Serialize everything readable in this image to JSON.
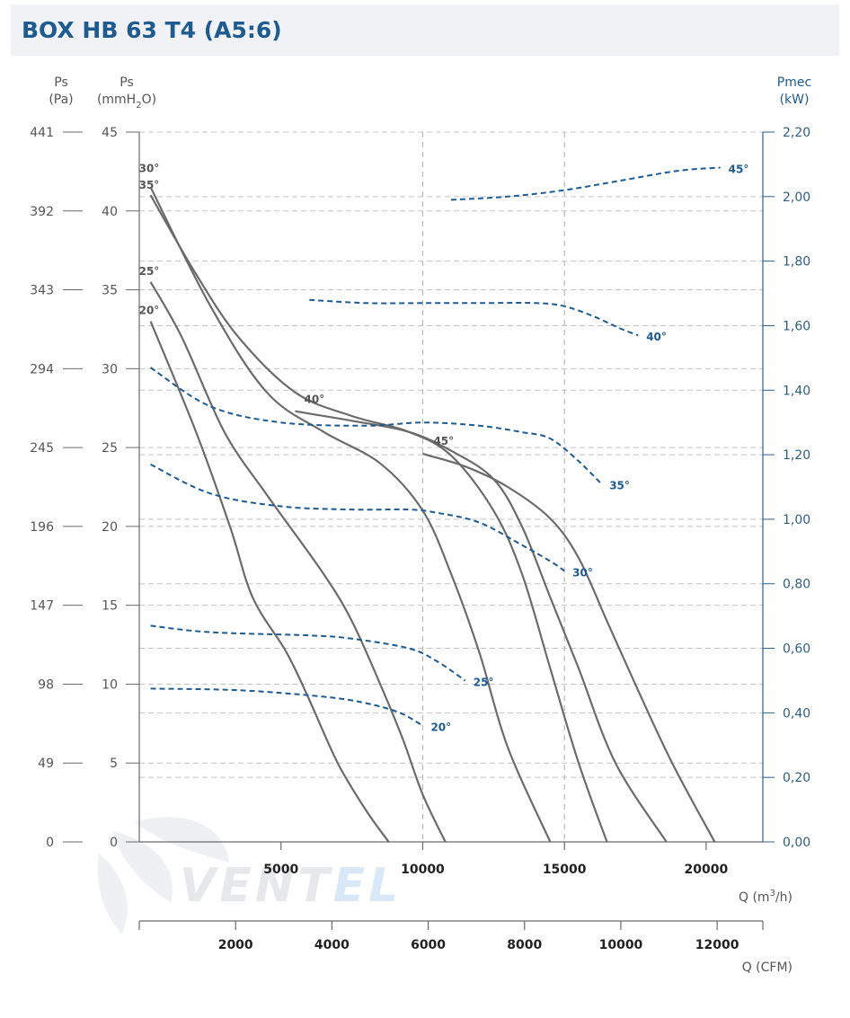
{
  "title": "BOX HB 63 T4 (A5:6)",
  "watermark": "VENTEL",
  "chart_data": {
    "type": "line",
    "title": "BOX HB 63 T4 (A5:6)",
    "axes": {
      "left_pa": {
        "label_top": "Ps",
        "label_unit": "(Pa)",
        "ticks": [
          "0",
          "49",
          "98",
          "147",
          "196",
          "245",
          "294",
          "343",
          "392",
          "441"
        ]
      },
      "left_mmh2o": {
        "label_top": "Ps",
        "label_unit_pre": "(mmH",
        "label_unit_sub": "2",
        "label_unit_post": "O)",
        "ticks": [
          "0",
          "5",
          "10",
          "15",
          "20",
          "25",
          "30",
          "35",
          "40",
          "45"
        ],
        "range": [
          0,
          45
        ]
      },
      "right_kw": {
        "label_top": "Pmec",
        "label_unit": "(kW)",
        "ticks": [
          "0,00",
          "0,20",
          "0,40",
          "0,60",
          "0,80",
          "1,00",
          "1,20",
          "1,40",
          "1,60",
          "1,80",
          "2,00",
          "2,20"
        ],
        "range": [
          0,
          2.2
        ]
      },
      "x_m3h": {
        "label_pre": "Q (m",
        "label_sup": "3",
        "label_post": "/h)",
        "ticks": [
          "5000",
          "10000",
          "15000",
          "20000"
        ],
        "range": [
          0,
          22000
        ]
      },
      "x_cfm": {
        "label": "Q (CFM)",
        "ticks": [
          "2000",
          "4000",
          "6000",
          "8000",
          "10000",
          "12000"
        ]
      }
    },
    "pressure_curves": [
      {
        "angle": "20°",
        "label_side": "left",
        "points": [
          [
            400,
            33
          ],
          [
            2000,
            26
          ],
          [
            3200,
            20
          ],
          [
            4000,
            15.5
          ],
          [
            5200,
            12
          ],
          [
            6000,
            9
          ],
          [
            7000,
            5
          ],
          [
            8000,
            2
          ],
          [
            8800,
            0
          ]
        ]
      },
      {
        "angle": "25°",
        "label_side": "left",
        "points": [
          [
            400,
            35.5
          ],
          [
            1500,
            32
          ],
          [
            3000,
            26
          ],
          [
            4500,
            22
          ],
          [
            6500,
            17
          ],
          [
            7500,
            14
          ],
          [
            8500,
            10
          ],
          [
            9300,
            6.5
          ],
          [
            10000,
            3
          ],
          [
            10800,
            0
          ]
        ]
      },
      {
        "angle": "30°",
        "label_side": "left",
        "points": [
          [
            400,
            41.5
          ],
          [
            2500,
            34
          ],
          [
            4500,
            28.5
          ],
          [
            6500,
            26
          ],
          [
            8500,
            24
          ],
          [
            10000,
            21
          ],
          [
            11000,
            17
          ],
          [
            12000,
            12
          ],
          [
            13000,
            6
          ],
          [
            14500,
            0
          ]
        ]
      },
      {
        "angle": "35°",
        "label_side": "left",
        "points": [
          [
            400,
            41
          ],
          [
            2000,
            36
          ],
          [
            3500,
            32
          ],
          [
            5500,
            28.5
          ],
          [
            7500,
            27
          ],
          [
            9500,
            26
          ],
          [
            11000,
            24.5
          ],
          [
            12500,
            21
          ],
          [
            13500,
            17
          ],
          [
            14500,
            11
          ],
          [
            15500,
            5
          ],
          [
            16500,
            0
          ]
        ]
      },
      {
        "angle": "40°",
        "label_side": "curve",
        "points": [
          [
            5500,
            27.3
          ],
          [
            7500,
            26.7
          ],
          [
            9500,
            26
          ],
          [
            11000,
            24.8
          ],
          [
            12500,
            23
          ],
          [
            13500,
            20
          ],
          [
            14500,
            15.5
          ],
          [
            15500,
            11
          ],
          [
            16800,
            5
          ],
          [
            18600,
            0
          ]
        ]
      },
      {
        "angle": "45°",
        "label_side": "curve",
        "points": [
          [
            10000,
            24.6
          ],
          [
            11500,
            23.8
          ],
          [
            13000,
            22.5
          ],
          [
            14500,
            20.5
          ],
          [
            15500,
            18
          ],
          [
            16500,
            14
          ],
          [
            17500,
            10
          ],
          [
            18800,
            5
          ],
          [
            20300,
            0
          ]
        ]
      }
    ],
    "power_curves": [
      {
        "angle": "20°",
        "points": [
          [
            400,
            0.475
          ],
          [
            3500,
            0.47
          ],
          [
            6500,
            0.45
          ],
          [
            8000,
            0.43
          ],
          [
            9200,
            0.4
          ],
          [
            10000,
            0.36
          ]
        ]
      },
      {
        "angle": "25°",
        "points": [
          [
            400,
            0.67
          ],
          [
            2500,
            0.65
          ],
          [
            6000,
            0.64
          ],
          [
            7500,
            0.63
          ],
          [
            9500,
            0.6
          ],
          [
            10500,
            0.56
          ],
          [
            11500,
            0.5
          ]
        ]
      },
      {
        "angle": "30°",
        "points": [
          [
            400,
            1.17
          ],
          [
            2500,
            1.08
          ],
          [
            5000,
            1.04
          ],
          [
            7500,
            1.03
          ],
          [
            9500,
            1.03
          ],
          [
            10500,
            1.02
          ],
          [
            12000,
            0.99
          ],
          [
            13500,
            0.92
          ],
          [
            14500,
            0.87
          ],
          [
            15000,
            0.84
          ]
        ]
      },
      {
        "angle": "35°",
        "points": [
          [
            400,
            1.47
          ],
          [
            2500,
            1.35
          ],
          [
            5000,
            1.3
          ],
          [
            8000,
            1.29
          ],
          [
            10000,
            1.3
          ],
          [
            12000,
            1.29
          ],
          [
            13500,
            1.27
          ],
          [
            14500,
            1.25
          ],
          [
            15500,
            1.18
          ],
          [
            16300,
            1.11
          ]
        ]
      },
      {
        "angle": "40°",
        "points": [
          [
            6000,
            1.68
          ],
          [
            8000,
            1.67
          ],
          [
            10000,
            1.67
          ],
          [
            12000,
            1.67
          ],
          [
            14000,
            1.67
          ],
          [
            15000,
            1.66
          ],
          [
            16000,
            1.63
          ],
          [
            17000,
            1.59
          ],
          [
            17600,
            1.57
          ]
        ]
      },
      {
        "angle": "45°",
        "points": [
          [
            11000,
            1.99
          ],
          [
            13000,
            2.0
          ],
          [
            15000,
            2.02
          ],
          [
            17000,
            2.05
          ],
          [
            19000,
            2.08
          ],
          [
            20500,
            2.09
          ]
        ]
      }
    ],
    "grid": "dashed"
  }
}
